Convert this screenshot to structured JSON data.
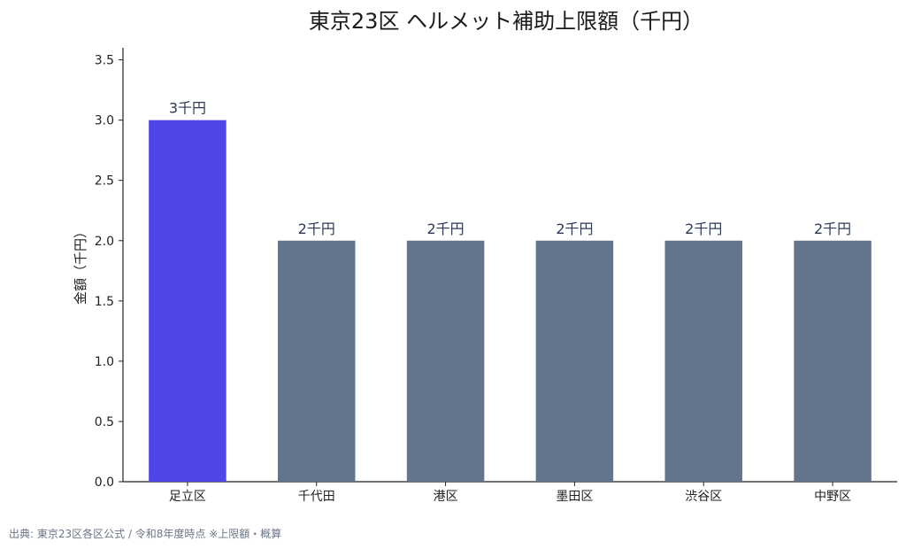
{
  "chart_data": {
    "type": "bar",
    "title": "東京23区 ヘルメット補助上限額（千円）",
    "ylabel": "金額（千円）",
    "xlabel": "",
    "categories": [
      "足立区",
      "千代田",
      "港区",
      "墨田区",
      "渋谷区",
      "中野区"
    ],
    "values": [
      3,
      2,
      2,
      2,
      2,
      2
    ],
    "data_labels": [
      "3千円",
      "2千円",
      "2千円",
      "2千円",
      "2千円",
      "2千円"
    ],
    "ylim": [
      0,
      3.6
    ],
    "yticks": [
      "0.0",
      "0.5",
      "1.0",
      "1.5",
      "2.0",
      "2.5",
      "3.0",
      "3.5"
    ],
    "highlight_index": 0,
    "colors": {
      "highlight": "#4f46e5",
      "default": "#64748b"
    },
    "grid": false,
    "legend": "none"
  },
  "source_note": "出典: 東京23区各区公式 / 令和8年度時点 ※上限額・概算"
}
